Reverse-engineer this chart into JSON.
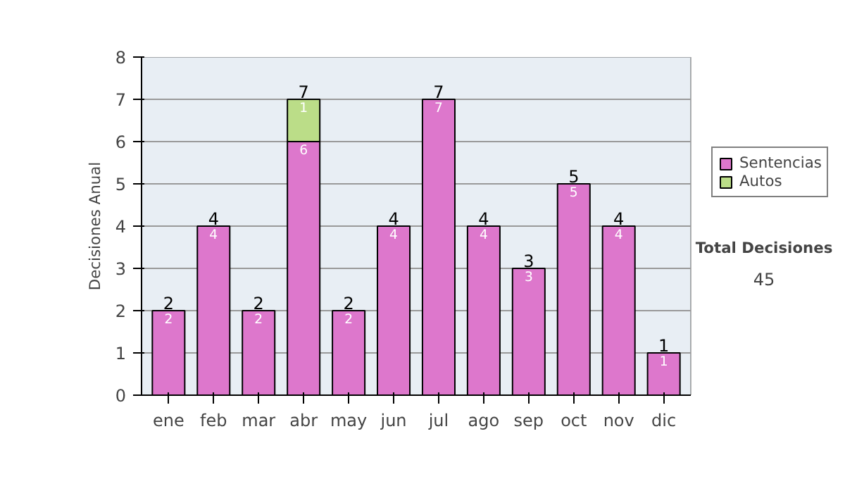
{
  "chart_data": {
    "type": "bar",
    "stacked": true,
    "ylabel": "Decisiones Anual",
    "categories": [
      "ene",
      "feb",
      "mar",
      "abr",
      "may",
      "jun",
      "jul",
      "ago",
      "sep",
      "oct",
      "nov",
      "dic"
    ],
    "series": [
      {
        "name": "Sentencias",
        "color": "#dd77cc",
        "values": [
          2,
          4,
          2,
          6,
          2,
          4,
          7,
          4,
          3,
          5,
          4,
          1
        ],
        "value_labels": [
          "2",
          "4",
          "2",
          "6",
          "2",
          "4",
          "7",
          "4",
          "3",
          "5",
          "4",
          "1"
        ]
      },
      {
        "name": "Autos",
        "color": "#bbdd88",
        "values": [
          0,
          0,
          0,
          1,
          0,
          0,
          0,
          0,
          0,
          0,
          0,
          0
        ],
        "value_labels": [
          null,
          null,
          null,
          "1",
          null,
          null,
          null,
          null,
          null,
          null,
          null,
          null
        ]
      }
    ],
    "totals": [
      "2",
      "4",
      "2",
      "7",
      "2",
      "4",
      "7",
      "4",
      "3",
      "5",
      "4",
      "1"
    ],
    "ylim": [
      0,
      8
    ],
    "yticks": [
      0,
      1,
      2,
      3,
      4,
      5,
      6,
      7,
      8
    ],
    "grid": "y",
    "legend": "right",
    "annotations": [
      "Total Decisiones",
      "45"
    ]
  }
}
